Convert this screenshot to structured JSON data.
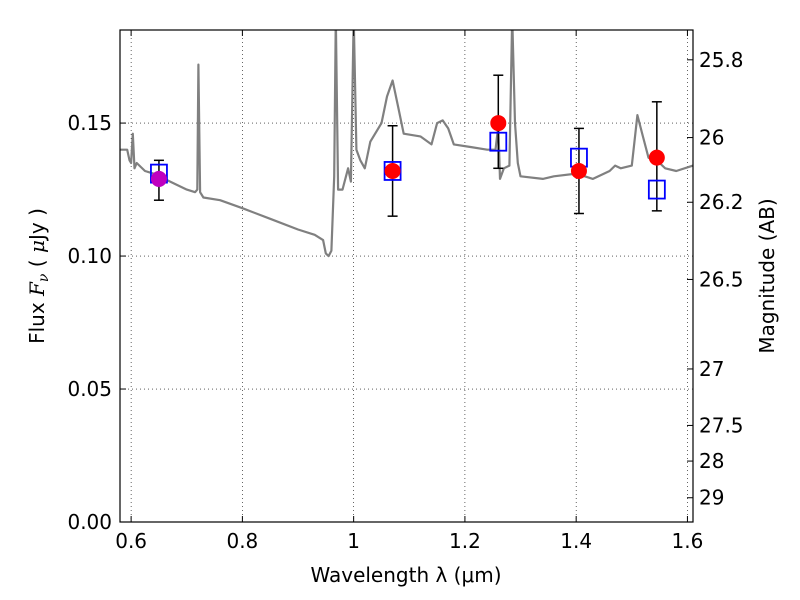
{
  "chart_data": {
    "type": "scatter",
    "title": "",
    "xlabel": "Wavelength  λ (μm)",
    "ylabel": "Flux  Fν  ( μJy )",
    "ylabel_right": "Magnitude (AB)",
    "xlim": [
      0.58,
      1.61
    ],
    "ylim": [
      0.0,
      0.185
    ],
    "grid": true,
    "legend": "none",
    "x_ticks": [
      0.6,
      0.8,
      1.0,
      1.2,
      1.4,
      1.6
    ],
    "x_tick_labels": [
      "0.6",
      "0.8",
      "1",
      "1.2",
      "1.4",
      "1.6"
    ],
    "y_ticks": [
      0.0,
      0.05,
      0.1,
      0.15
    ],
    "y_tick_labels": [
      "0.00",
      "0.05",
      "0.10",
      "0.15"
    ],
    "right_ticks": [
      {
        "mag": 25.8,
        "label": "25.8"
      },
      {
        "mag": 26.0,
        "label": "26"
      },
      {
        "mag": 26.2,
        "label": "26.2"
      },
      {
        "mag": 26.5,
        "label": "26.5"
      },
      {
        "mag": 27.0,
        "label": "27"
      },
      {
        "mag": 27.5,
        "label": "27.5"
      },
      {
        "mag": 28.0,
        "label": "28"
      },
      {
        "mag": 29.0,
        "label": "29"
      }
    ],
    "series": [
      {
        "kind": "model_spectrum",
        "color": "#808080",
        "points": [
          [
            0.58,
            0.14
          ],
          [
            0.593,
            0.14
          ],
          [
            0.597,
            0.136
          ],
          [
            0.6,
            0.135
          ],
          [
            0.603,
            0.146
          ],
          [
            0.606,
            0.133
          ],
          [
            0.61,
            0.135
          ],
          [
            0.625,
            0.132
          ],
          [
            0.64,
            0.131
          ],
          [
            0.66,
            0.129
          ],
          [
            0.68,
            0.127
          ],
          [
            0.7,
            0.125
          ],
          [
            0.715,
            0.124
          ],
          [
            0.719,
            0.125
          ],
          [
            0.721,
            0.172
          ],
          [
            0.724,
            0.124
          ],
          [
            0.73,
            0.122
          ],
          [
            0.76,
            0.121
          ],
          [
            0.8,
            0.118
          ],
          [
            0.85,
            0.114
          ],
          [
            0.9,
            0.11
          ],
          [
            0.93,
            0.108
          ],
          [
            0.945,
            0.106
          ],
          [
            0.95,
            0.101
          ],
          [
            0.955,
            0.1
          ],
          [
            0.96,
            0.102
          ],
          [
            0.965,
            0.13
          ],
          [
            0.968,
            0.19
          ],
          [
            0.972,
            0.125
          ],
          [
            0.98,
            0.125
          ],
          [
            0.99,
            0.133
          ],
          [
            0.995,
            0.128
          ],
          [
            1.0,
            0.19
          ],
          [
            1.005,
            0.14
          ],
          [
            1.012,
            0.136
          ],
          [
            1.02,
            0.133
          ],
          [
            1.03,
            0.143
          ],
          [
            1.05,
            0.15
          ],
          [
            1.06,
            0.16
          ],
          [
            1.07,
            0.166
          ],
          [
            1.08,
            0.156
          ],
          [
            1.09,
            0.146
          ],
          [
            1.12,
            0.145
          ],
          [
            1.14,
            0.142
          ],
          [
            1.15,
            0.15
          ],
          [
            1.16,
            0.151
          ],
          [
            1.17,
            0.148
          ],
          [
            1.18,
            0.142
          ],
          [
            1.21,
            0.141
          ],
          [
            1.24,
            0.14
          ],
          [
            1.255,
            0.14
          ],
          [
            1.26,
            0.149
          ],
          [
            1.263,
            0.129
          ],
          [
            1.27,
            0.133
          ],
          [
            1.28,
            0.134
          ],
          [
            1.285,
            0.19
          ],
          [
            1.29,
            0.15
          ],
          [
            1.295,
            0.135
          ],
          [
            1.3,
            0.13
          ],
          [
            1.34,
            0.129
          ],
          [
            1.36,
            0.13
          ],
          [
            1.4,
            0.131
          ],
          [
            1.43,
            0.129
          ],
          [
            1.46,
            0.132
          ],
          [
            1.47,
            0.134
          ],
          [
            1.48,
            0.133
          ],
          [
            1.5,
            0.134
          ],
          [
            1.51,
            0.153
          ],
          [
            1.52,
            0.145
          ],
          [
            1.53,
            0.137
          ],
          [
            1.55,
            0.135
          ],
          [
            1.56,
            0.133
          ],
          [
            1.58,
            0.132
          ],
          [
            1.61,
            0.134
          ]
        ]
      },
      {
        "kind": "observed_flux",
        "marker": "filled-circle",
        "points": [
          {
            "x": 0.65,
            "y": 0.129,
            "err": [
              0.121,
              0.136
            ],
            "color": "#bf00bf"
          },
          {
            "x": 1.07,
            "y": 0.132,
            "err": [
              0.115,
              0.149
            ],
            "color": "#ff0000"
          },
          {
            "x": 1.26,
            "y": 0.15,
            "err": [
              0.133,
              0.168
            ],
            "color": "#ff0000"
          },
          {
            "x": 1.405,
            "y": 0.132,
            "err": [
              0.116,
              0.148
            ],
            "color": "#ff0000"
          },
          {
            "x": 1.545,
            "y": 0.137,
            "err": [
              0.117,
              0.158
            ],
            "color": "#ff0000"
          }
        ]
      },
      {
        "kind": "model_bandpass",
        "marker": "open-square",
        "color": "#0000ff",
        "points": [
          {
            "x": 0.65,
            "y": 0.131
          },
          {
            "x": 1.07,
            "y": 0.132
          },
          {
            "x": 1.26,
            "y": 0.143
          },
          {
            "x": 1.405,
            "y": 0.137
          },
          {
            "x": 1.545,
            "y": 0.125
          }
        ]
      }
    ]
  }
}
